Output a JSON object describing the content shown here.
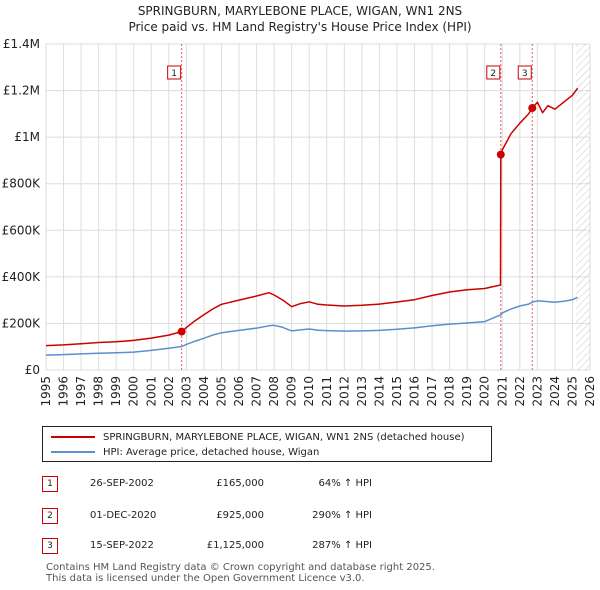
{
  "title_line1": "SPRINGBURN, MARYLEBONE PLACE, WIGAN, WN1 2NS",
  "title_line2": "Price paid vs. HM Land Registry's House Price Index (HPI)",
  "colors": {
    "property": "#cc0000",
    "hpi": "#5b8fd0",
    "grid": "#dddddd",
    "marker_line": "#e06060",
    "future_hatch": "#bbbbbb"
  },
  "chart_data": {
    "type": "line",
    "xlim": [
      1995,
      2026
    ],
    "ylim": [
      0,
      1400000
    ],
    "xticks": [
      1995,
      1996,
      1997,
      1998,
      1999,
      2000,
      2001,
      2002,
      2003,
      2004,
      2005,
      2006,
      2007,
      2008,
      2009,
      2010,
      2011,
      2012,
      2013,
      2014,
      2015,
      2016,
      2017,
      2018,
      2019,
      2020,
      2021,
      2022,
      2023,
      2024,
      2025,
      2026
    ],
    "yticks": [
      {
        "value": 0,
        "label": "£0"
      },
      {
        "value": 200000,
        "label": "£200K"
      },
      {
        "value": 400000,
        "label": "£400K"
      },
      {
        "value": 600000,
        "label": "£600K"
      },
      {
        "value": 800000,
        "label": "£800K"
      },
      {
        "value": 1000000,
        "label": "£1M"
      },
      {
        "value": 1200000,
        "label": "£1.2M"
      },
      {
        "value": 1400000,
        "label": "£1.4M"
      }
    ],
    "future_from": 2025.2,
    "series": [
      {
        "name": "SPRINGBURN, MARYLEBONE PLACE, WIGAN, WN1 2NS (detached house)",
        "x": [
          1995,
          1996,
          1997,
          1998,
          1999,
          2000,
          2001,
          2002,
          2002.73,
          2003,
          2003.5,
          2004,
          2004.5,
          2005,
          2006,
          2007,
          2007.7,
          2008,
          2008.5,
          2009,
          2009.5,
          2010,
          2010.5,
          2011,
          2012,
          2013,
          2014,
          2015,
          2016,
          2017,
          2018,
          2019,
          2020,
          2020.9,
          2020.917,
          2021,
          2021.5,
          2022,
          2022.5,
          2022.71,
          2023,
          2023.3,
          2023.6,
          2024,
          2024.5,
          2025,
          2025.3
        ],
        "y": [
          105000,
          108000,
          113000,
          118000,
          121000,
          127000,
          137000,
          150000,
          165000,
          182000,
          212000,
          237000,
          262000,
          282000,
          300000,
          318000,
          332000,
          322000,
          300000,
          272000,
          285000,
          293000,
          282000,
          279000,
          275000,
          278000,
          283000,
          292000,
          302000,
          320000,
          335000,
          345000,
          350000,
          365000,
          925000,
          945000,
          1015000,
          1060000,
          1100000,
          1125000,
          1150000,
          1105000,
          1135000,
          1120000,
          1150000,
          1180000,
          1210000
        ]
      },
      {
        "name": "HPI: Average price, detached house, Wigan",
        "x": [
          1995,
          1996,
          1997,
          1998,
          1999,
          2000,
          2001,
          2002,
          2002.73,
          2003,
          2003.5,
          2004,
          2004.5,
          2005,
          2006,
          2007,
          2007.7,
          2008,
          2008.5,
          2009,
          2009.5,
          2010,
          2010.5,
          2011,
          2012,
          2013,
          2014,
          2015,
          2016,
          2017,
          2018,
          2019,
          2020,
          2020.917,
          2021,
          2021.5,
          2022,
          2022.5,
          2022.71,
          2023,
          2023.5,
          2024,
          2024.5,
          2025,
          2025.3
        ],
        "y": [
          64000,
          66000,
          69000,
          72000,
          74000,
          77000,
          84000,
          93000,
          101000,
          110000,
          124000,
          136000,
          150000,
          160000,
          170000,
          180000,
          190000,
          192000,
          183000,
          168000,
          172000,
          176000,
          171000,
          169000,
          167000,
          168000,
          170000,
          175000,
          181000,
          190000,
          197000,
          202000,
          208000,
          237000,
          245000,
          262000,
          275000,
          283000,
          291000,
          297000,
          294000,
          291000,
          295000,
          302000,
          312000
        ]
      }
    ],
    "sale_markers": [
      {
        "label": "1",
        "x": 2002.73,
        "y": 165000
      },
      {
        "label": "2",
        "x": 2020.917,
        "y": 925000
      },
      {
        "label": "3",
        "x": 2022.71,
        "y": 1125000
      }
    ]
  },
  "legend": {
    "property_label": "SPRINGBURN, MARYLEBONE PLACE, WIGAN, WN1 2NS (detached house)",
    "hpi_label": "HPI: Average price, detached house, Wigan"
  },
  "transactions": [
    {
      "num": "1",
      "date": "26-SEP-2002",
      "price": "£165,000",
      "hpi": "64% ↑ HPI"
    },
    {
      "num": "2",
      "date": "01-DEC-2020",
      "price": "£925,000",
      "hpi": "290% ↑ HPI"
    },
    {
      "num": "3",
      "date": "15-SEP-2022",
      "price": "£1,125,000",
      "hpi": "287% ↑ HPI"
    }
  ],
  "footer_line1": "Contains HM Land Registry data © Crown copyright and database right 2025.",
  "footer_line2": "This data is licensed under the Open Government Licence v3.0."
}
